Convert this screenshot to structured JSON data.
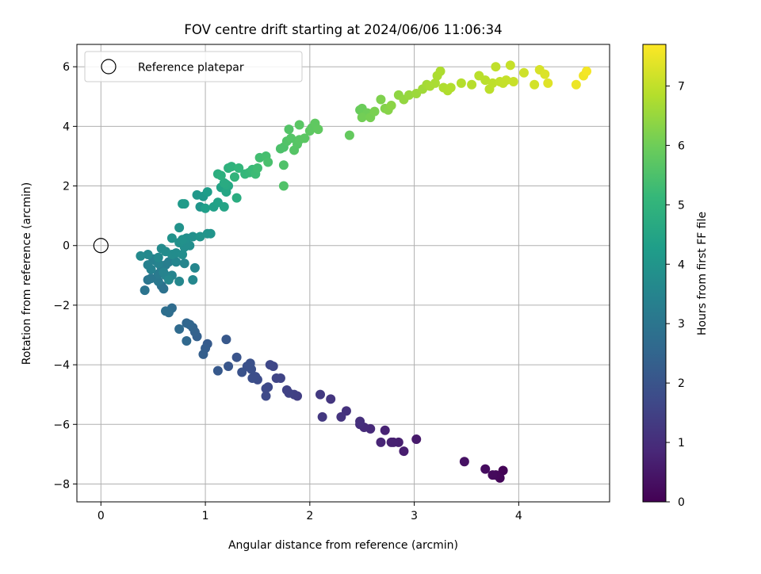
{
  "chart_data": {
    "type": "scatter",
    "title": "FOV centre drift starting at 2024/06/06 11:06:34",
    "xlabel": "Angular distance from reference (arcmin)",
    "ylabel": "Rotation from reference (arcmin)",
    "xlim": [
      -0.23,
      4.87
    ],
    "ylim": [
      -8.6,
      6.75
    ],
    "xticks": [
      0,
      1,
      2,
      3,
      4
    ],
    "yticks": [
      -8,
      -6,
      -4,
      -2,
      0,
      2,
      4,
      6
    ],
    "xtick_labels": [
      "0",
      "1",
      "2",
      "3",
      "4"
    ],
    "ytick_labels": [
      "−8",
      "−6",
      "−4",
      "−2",
      "0",
      "2",
      "4",
      "6"
    ],
    "grid": true,
    "legend": {
      "location": "upper-left",
      "entries": [
        "Reference platepar"
      ]
    },
    "reference_point": {
      "x": 0,
      "y": 0
    },
    "colorbar": {
      "label": "Hours from first FF file",
      "min": 0,
      "max": 7.7,
      "ticks": [
        0,
        1,
        2,
        3,
        4,
        5,
        6,
        7
      ],
      "colormap": "viridis"
    },
    "series": [
      {
        "points": [
          [
            3.85,
            -7.55,
            0.05
          ],
          [
            3.82,
            -7.8,
            0.1
          ],
          [
            3.78,
            -7.7,
            0.15
          ],
          [
            3.75,
            -7.7,
            0.2
          ],
          [
            3.68,
            -7.5,
            0.25
          ],
          [
            3.48,
            -7.25,
            0.35
          ],
          [
            3.02,
            -6.5,
            0.55
          ],
          [
            2.9,
            -6.9,
            0.62
          ],
          [
            2.85,
            -6.6,
            0.65
          ],
          [
            2.8,
            -6.6,
            0.68
          ],
          [
            2.78,
            -6.6,
            0.7
          ],
          [
            2.72,
            -6.2,
            0.75
          ],
          [
            2.68,
            -6.6,
            0.8
          ],
          [
            2.58,
            -6.15,
            0.9
          ],
          [
            2.52,
            -6.1,
            0.95
          ],
          [
            2.48,
            -6.0,
            1.0
          ],
          [
            2.48,
            -5.9,
            1.05
          ],
          [
            2.35,
            -5.55,
            1.1
          ],
          [
            2.3,
            -5.75,
            1.15
          ],
          [
            2.2,
            -5.15,
            1.2
          ],
          [
            2.12,
            -5.75,
            1.25
          ],
          [
            2.1,
            -5.0,
            1.3
          ],
          [
            1.88,
            -5.05,
            1.4
          ],
          [
            1.85,
            -5.0,
            1.45
          ],
          [
            1.8,
            -4.95,
            1.5
          ],
          [
            1.78,
            -4.85,
            1.52
          ],
          [
            1.72,
            -4.45,
            1.55
          ],
          [
            1.68,
            -4.45,
            1.58
          ],
          [
            1.65,
            -4.05,
            1.62
          ],
          [
            1.62,
            -4.0,
            1.65
          ],
          [
            1.6,
            -4.75,
            1.68
          ],
          [
            1.58,
            -4.8,
            1.7
          ],
          [
            1.58,
            -5.05,
            1.72
          ],
          [
            1.5,
            -4.5,
            1.78
          ],
          [
            1.48,
            -4.4,
            1.82
          ],
          [
            1.45,
            -4.45,
            1.85
          ],
          [
            1.44,
            -4.15,
            1.88
          ],
          [
            1.43,
            -3.95,
            1.9
          ],
          [
            1.4,
            -4.05,
            1.92
          ],
          [
            1.35,
            -4.25,
            1.95
          ],
          [
            1.3,
            -3.75,
            2.0
          ],
          [
            1.22,
            -4.05,
            2.05
          ],
          [
            1.2,
            -3.15,
            2.1
          ],
          [
            1.12,
            -4.2,
            2.15
          ],
          [
            1.02,
            -3.3,
            2.2
          ],
          [
            1.0,
            -3.45,
            2.25
          ],
          [
            0.98,
            -3.65,
            2.3
          ],
          [
            0.92,
            -3.05,
            2.35
          ],
          [
            0.9,
            -2.9,
            2.4
          ],
          [
            0.88,
            -2.75,
            2.45
          ],
          [
            0.85,
            -2.65,
            2.5
          ],
          [
            0.82,
            -2.6,
            2.55
          ],
          [
            0.82,
            -3.2,
            2.6
          ],
          [
            0.75,
            -2.8,
            2.65
          ],
          [
            0.68,
            -2.1,
            2.7
          ],
          [
            0.65,
            -2.25,
            2.75
          ],
          [
            0.62,
            -2.2,
            2.8
          ],
          [
            0.58,
            -1.35,
            2.85
          ],
          [
            0.6,
            -1.45,
            2.9
          ],
          [
            0.42,
            -1.5,
            2.95
          ],
          [
            0.45,
            -1.15,
            3.0
          ],
          [
            0.48,
            -1.1,
            3.05
          ],
          [
            0.55,
            -1.2,
            3.1
          ],
          [
            0.55,
            -0.95,
            3.15
          ],
          [
            0.58,
            -0.75,
            3.2
          ],
          [
            0.62,
            -0.65,
            3.25
          ],
          [
            0.65,
            -0.55,
            3.3
          ],
          [
            0.5,
            -0.45,
            3.32
          ],
          [
            0.52,
            -0.5,
            3.35
          ],
          [
            0.45,
            -0.65,
            3.38
          ],
          [
            0.48,
            -0.8,
            3.4
          ],
          [
            0.55,
            -0.6,
            3.42
          ],
          [
            0.6,
            -0.9,
            3.44
          ],
          [
            0.62,
            -1.0,
            3.46
          ],
          [
            0.68,
            -1.0,
            3.48
          ],
          [
            0.72,
            -0.55,
            3.5
          ],
          [
            0.8,
            -0.6,
            3.52
          ],
          [
            0.9,
            -0.75,
            3.54
          ],
          [
            0.88,
            -1.15,
            3.56
          ],
          [
            0.75,
            -1.2,
            3.58
          ],
          [
            0.65,
            -1.15,
            3.6
          ],
          [
            0.55,
            -0.4,
            3.62
          ],
          [
            0.45,
            -0.3,
            3.64
          ],
          [
            0.38,
            -0.35,
            3.66
          ],
          [
            0.58,
            -0.1,
            3.68
          ],
          [
            0.62,
            -0.2,
            3.7
          ],
          [
            0.68,
            -0.3,
            3.72
          ],
          [
            0.72,
            -0.25,
            3.74
          ],
          [
            0.78,
            -0.3,
            3.76
          ],
          [
            0.8,
            -0.05,
            3.78
          ],
          [
            0.85,
            0.0,
            3.8
          ],
          [
            0.82,
            0.25,
            3.82
          ],
          [
            0.88,
            0.3,
            3.84
          ],
          [
            0.75,
            0.1,
            3.86
          ],
          [
            0.78,
            0.2,
            3.88
          ],
          [
            0.75,
            0.6,
            3.9
          ],
          [
            0.68,
            0.25,
            3.92
          ],
          [
            0.95,
            0.3,
            3.94
          ],
          [
            1.02,
            0.4,
            3.96
          ],
          [
            1.05,
            0.4,
            3.98
          ],
          [
            0.95,
            1.3,
            4.0
          ],
          [
            0.92,
            1.7,
            4.05
          ],
          [
            0.98,
            1.65,
            4.1
          ],
          [
            0.78,
            1.4,
            4.15
          ],
          [
            0.8,
            1.4,
            4.2
          ],
          [
            1.02,
            1.8,
            4.25
          ],
          [
            1.0,
            1.25,
            4.3
          ],
          [
            1.08,
            1.3,
            4.35
          ],
          [
            1.12,
            1.45,
            4.4
          ],
          [
            1.15,
            1.95,
            4.45
          ],
          [
            1.18,
            1.3,
            4.5
          ],
          [
            1.2,
            1.8,
            4.55
          ],
          [
            1.22,
            2.0,
            4.6
          ],
          [
            1.2,
            2.05,
            4.65
          ],
          [
            1.18,
            2.1,
            4.7
          ],
          [
            1.3,
            1.6,
            4.75
          ],
          [
            1.12,
            2.4,
            4.8
          ],
          [
            1.15,
            2.35,
            4.85
          ],
          [
            1.22,
            2.6,
            4.9
          ],
          [
            1.25,
            2.65,
            4.95
          ],
          [
            1.28,
            2.3,
            5.0
          ],
          [
            1.32,
            2.6,
            5.05
          ],
          [
            1.38,
            2.4,
            5.1
          ],
          [
            1.42,
            2.45,
            5.15
          ],
          [
            1.45,
            2.55,
            5.2
          ],
          [
            1.48,
            2.4,
            5.25
          ],
          [
            1.5,
            2.6,
            5.3
          ],
          [
            1.52,
            2.95,
            5.35
          ],
          [
            1.58,
            3.0,
            5.4
          ],
          [
            1.6,
            2.8,
            5.45
          ],
          [
            1.72,
            3.25,
            5.5
          ],
          [
            1.75,
            3.3,
            5.52
          ],
          [
            1.75,
            2.7,
            5.54
          ],
          [
            1.75,
            2.0,
            5.56
          ],
          [
            1.78,
            3.5,
            5.58
          ],
          [
            1.8,
            3.9,
            5.6
          ],
          [
            1.82,
            3.6,
            5.62
          ],
          [
            1.85,
            3.2,
            5.64
          ],
          [
            1.88,
            3.4,
            5.66
          ],
          [
            1.9,
            3.55,
            5.68
          ],
          [
            1.9,
            4.05,
            5.7
          ],
          [
            1.95,
            3.6,
            5.72
          ],
          [
            2.0,
            3.85,
            5.74
          ],
          [
            2.02,
            3.95,
            5.76
          ],
          [
            2.05,
            4.1,
            5.78
          ],
          [
            2.08,
            3.9,
            5.8
          ],
          [
            2.38,
            3.7,
            5.85
          ],
          [
            2.48,
            4.55,
            5.9
          ],
          [
            2.5,
            4.6,
            5.95
          ],
          [
            2.55,
            4.45,
            6.0
          ],
          [
            2.5,
            4.3,
            6.05
          ],
          [
            2.58,
            4.3,
            6.1
          ],
          [
            2.62,
            4.5,
            6.15
          ],
          [
            2.68,
            4.9,
            6.2
          ],
          [
            2.72,
            4.6,
            6.25
          ],
          [
            2.75,
            4.55,
            6.3
          ],
          [
            2.78,
            4.7,
            6.35
          ],
          [
            2.85,
            5.05,
            6.4
          ],
          [
            2.9,
            4.9,
            6.45
          ],
          [
            2.95,
            5.05,
            6.5
          ],
          [
            3.02,
            5.1,
            6.55
          ],
          [
            3.08,
            5.25,
            6.6
          ],
          [
            3.12,
            5.4,
            6.65
          ],
          [
            3.15,
            5.35,
            6.7
          ],
          [
            3.2,
            5.45,
            6.72
          ],
          [
            3.22,
            5.7,
            6.74
          ],
          [
            3.25,
            5.85,
            6.76
          ],
          [
            3.28,
            5.3,
            6.78
          ],
          [
            3.32,
            5.2,
            6.8
          ],
          [
            3.35,
            5.3,
            6.82
          ],
          [
            3.45,
            5.45,
            6.85
          ],
          [
            3.55,
            5.4,
            6.88
          ],
          [
            3.62,
            5.7,
            6.9
          ],
          [
            3.68,
            5.55,
            6.92
          ],
          [
            3.72,
            5.25,
            6.94
          ],
          [
            3.75,
            5.45,
            6.96
          ],
          [
            3.78,
            6.0,
            6.98
          ],
          [
            3.82,
            5.5,
            7.0
          ],
          [
            3.85,
            5.45,
            7.02
          ],
          [
            3.88,
            5.55,
            7.04
          ],
          [
            3.92,
            6.05,
            7.06
          ],
          [
            3.95,
            5.5,
            7.08
          ],
          [
            4.05,
            5.8,
            7.15
          ],
          [
            4.15,
            5.4,
            7.2
          ],
          [
            4.2,
            5.9,
            7.25
          ],
          [
            4.25,
            5.75,
            7.3
          ],
          [
            4.28,
            5.45,
            7.35
          ],
          [
            4.55,
            5.4,
            7.5
          ],
          [
            4.62,
            5.7,
            7.55
          ],
          [
            4.65,
            5.85,
            7.6
          ]
        ]
      }
    ]
  }
}
